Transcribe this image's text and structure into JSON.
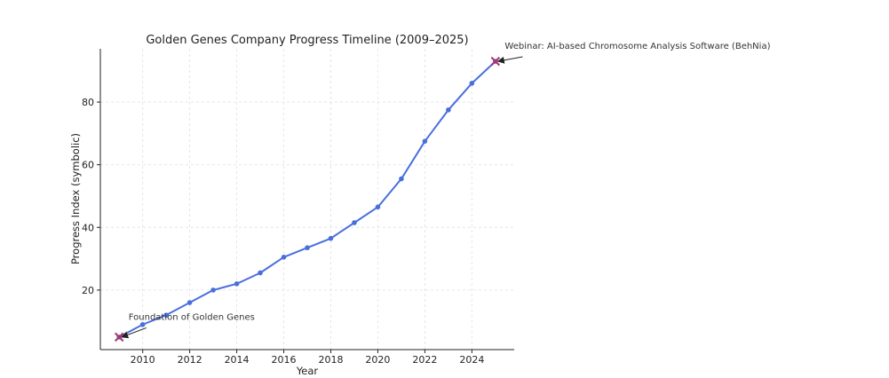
{
  "chart_data": {
    "type": "line",
    "title": "Golden Genes Company Progress Timeline (2009–2025)",
    "xlabel": "Year",
    "ylabel": "Progress Index (symbolic)",
    "xlim": [
      2008.2,
      2025.8
    ],
    "ylim": [
      1,
      97
    ],
    "xticks": [
      2010,
      2012,
      2014,
      2016,
      2018,
      2020,
      2022,
      2024
    ],
    "yticks": [
      20,
      40,
      60,
      80
    ],
    "grid": true,
    "colors": {
      "line": "#4a6fdc",
      "marker": "#4a6fdc",
      "highlight": "#b0306a",
      "arrow": "#222222"
    },
    "series": [
      {
        "x": [
          2009,
          2010,
          2011,
          2012,
          2013,
          2014,
          2015,
          2016,
          2017,
          2018,
          2019,
          2020,
          2021,
          2022,
          2023,
          2024,
          2025
        ],
        "values": [
          5,
          9,
          12,
          16,
          20,
          22,
          25.5,
          30.5,
          33.5,
          36.5,
          41.5,
          46.5,
          55.5,
          67.5,
          77.5,
          86,
          93
        ]
      }
    ],
    "annotations": [
      {
        "text": "Foundation of Golden Genes",
        "x": 2009,
        "y": 5,
        "text_x": 2009.4,
        "text_y": 10.5
      },
      {
        "text": "Webinar: AI-based Chromosome Analysis Software (BehNia)",
        "x": 2025,
        "y": 93,
        "text_x": 2025.4,
        "text_y": 97
      }
    ]
  }
}
